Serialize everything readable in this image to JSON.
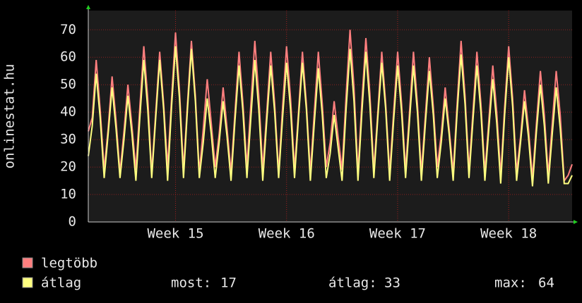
{
  "chart_data": {
    "type": "line",
    "y_label": "onlinestat.hu",
    "categories": [
      null,
      null,
      null,
      null,
      null,
      null,
      null,
      null,
      null,
      null,
      null,
      null,
      null,
      null,
      null,
      null,
      null,
      null,
      null,
      null,
      null,
      null,
      "Week 15",
      null,
      null,
      null,
      null,
      null,
      null,
      null,
      null,
      null,
      null,
      null,
      null,
      null,
      null,
      null,
      null,
      null,
      null,
      null,
      null,
      null,
      null,
      null,
      null,
      null,
      null,
      null,
      "Week 16",
      null,
      null,
      null,
      null,
      null,
      null,
      null,
      null,
      null,
      null,
      null,
      null,
      null,
      null,
      null,
      null,
      null,
      null,
      null,
      null,
      null,
      null,
      null,
      null,
      null,
      null,
      null,
      "Week 17",
      null,
      null,
      null,
      null,
      null,
      null,
      null,
      null,
      null,
      null,
      null,
      null,
      null,
      null,
      null,
      null,
      null,
      null,
      null,
      null,
      null,
      null,
      null,
      null,
      null,
      null,
      null,
      "Week 18",
      null,
      null,
      null,
      null,
      null,
      null,
      null,
      null,
      null,
      null,
      null,
      null,
      null,
      null,
      null,
      null
    ],
    "series": [
      {
        "name": "legtöbb",
        "color": "#ff7f7f",
        "values": [
          33,
          38,
          59,
          41,
          19,
          34,
          53,
          37,
          18,
          33,
          50,
          35,
          19,
          42,
          64,
          45,
          18,
          40,
          62,
          43,
          20,
          45,
          69,
          48,
          19,
          43,
          66,
          46,
          18,
          34,
          52,
          36,
          20,
          32,
          49,
          34,
          18,
          40,
          62,
          43,
          20,
          43,
          66,
          46,
          19,
          40,
          62,
          43,
          18,
          42,
          64,
          45,
          19,
          40,
          62,
          43,
          18,
          40,
          62,
          43,
          20,
          29,
          44,
          31,
          19,
          46,
          70,
          49,
          18,
          44,
          67,
          47,
          19,
          40,
          62,
          43,
          18,
          40,
          62,
          43,
          19,
          40,
          62,
          43,
          18,
          39,
          60,
          42,
          20,
          32,
          49,
          34,
          18,
          43,
          66,
          46,
          19,
          40,
          62,
          43,
          18,
          37,
          57,
          40,
          17,
          42,
          64,
          45,
          18,
          31,
          48,
          34,
          16,
          36,
          55,
          39,
          17,
          36,
          55,
          39,
          15,
          17,
          21
        ]
      },
      {
        "name": "átlag",
        "color": "#ffff80",
        "values": [
          24,
          35,
          54,
          38,
          16,
          32,
          49,
          34,
          16,
          30,
          46,
          32,
          15,
          38,
          59,
          41,
          16,
          38,
          59,
          41,
          15,
          42,
          64,
          45,
          16,
          41,
          63,
          44,
          16,
          29,
          45,
          32,
          16,
          29,
          44,
          31,
          15,
          37,
          57,
          40,
          16,
          38,
          59,
          41,
          15,
          37,
          57,
          40,
          16,
          38,
          58,
          41,
          16,
          38,
          58,
          41,
          15,
          36,
          56,
          39,
          16,
          25,
          39,
          27,
          15,
          41,
          63,
          44,
          15,
          40,
          62,
          43,
          16,
          38,
          58,
          41,
          15,
          37,
          57,
          40,
          16,
          37,
          57,
          40,
          15,
          36,
          55,
          39,
          16,
          29,
          45,
          32,
          15,
          40,
          61,
          43,
          16,
          37,
          57,
          40,
          15,
          34,
          52,
          36,
          14,
          39,
          60,
          42,
          15,
          29,
          44,
          31,
          13,
          33,
          50,
          35,
          14,
          32,
          49,
          34,
          14,
          14,
          17
        ]
      }
    ],
    "ylim": [
      0,
      77
    ],
    "yticks": [
      0,
      10,
      20,
      30,
      40,
      50,
      60,
      70
    ],
    "grid": true,
    "stats": [
      {
        "label": "most:",
        "value": 17
      },
      {
        "label": "átlag:",
        "value": 33
      },
      {
        "label": "max:",
        "value": 64
      }
    ]
  }
}
